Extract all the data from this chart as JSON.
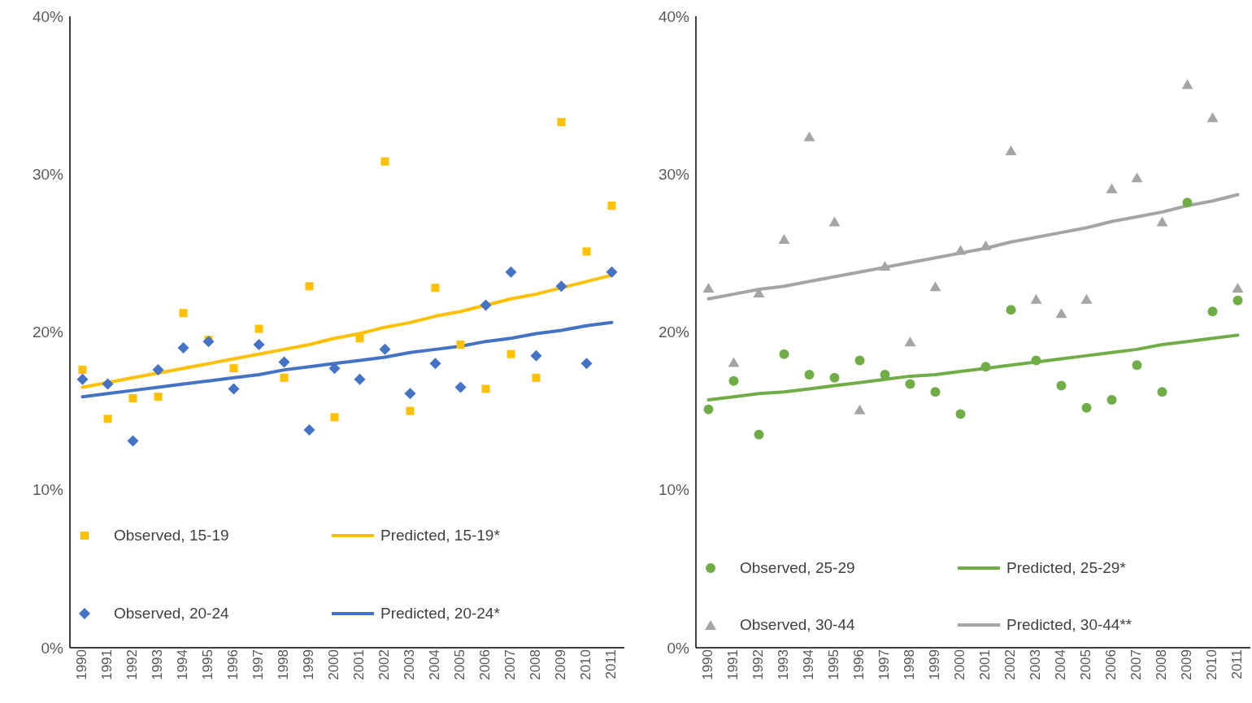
{
  "chart_data": [
    {
      "type": "scatter",
      "categories": [
        "1990",
        "1991",
        "1992",
        "1993",
        "1994",
        "1995",
        "1996",
        "1997",
        "1998",
        "1999",
        "2000",
        "2001",
        "2002",
        "2003",
        "2004",
        "2005",
        "2006",
        "2007",
        "2008",
        "2009",
        "2010",
        "2011"
      ],
      "ylim": [
        0,
        40
      ],
      "yticks": [
        {
          "value": 0,
          "label": "0%"
        },
        {
          "value": 10,
          "label": "10%"
        },
        {
          "value": 20,
          "label": "20%"
        },
        {
          "value": 30,
          "label": "30%"
        },
        {
          "value": 40,
          "label": "40%"
        }
      ],
      "legend": "bottom",
      "series": [
        {
          "name": "Observed, 15-19",
          "marker": "square",
          "color": "#ffc000",
          "values": [
            17.6,
            14.5,
            15.8,
            15.9,
            21.2,
            19.5,
            17.7,
            20.2,
            17.1,
            22.9,
            14.6,
            19.6,
            30.8,
            15.0,
            22.8,
            19.2,
            16.4,
            18.6,
            17.1,
            33.3,
            25.1,
            28.0
          ]
        },
        {
          "name": "Predicted, 15-19*",
          "type": "line",
          "color": "#ffc000",
          "values": [
            16.5,
            16.8,
            17.1,
            17.4,
            17.7,
            18.0,
            18.3,
            18.6,
            18.9,
            19.2,
            19.6,
            19.9,
            20.3,
            20.6,
            21.0,
            21.3,
            21.7,
            22.1,
            22.4,
            22.8,
            23.2,
            23.6
          ]
        },
        {
          "name": "Observed, 20-24",
          "marker": "diamond",
          "color": "#4472c4",
          "values": [
            17.0,
            16.7,
            13.1,
            17.6,
            19.0,
            19.4,
            16.4,
            19.2,
            18.1,
            13.8,
            17.7,
            17.0,
            18.9,
            16.1,
            18.0,
            16.5,
            21.7,
            23.8,
            18.5,
            22.9,
            18.0,
            23.8
          ]
        },
        {
          "name": "Predicted, 20-24*",
          "type": "line",
          "color": "#4472c4",
          "values": [
            15.9,
            16.1,
            16.3,
            16.5,
            16.7,
            16.9,
            17.1,
            17.3,
            17.6,
            17.8,
            18.0,
            18.2,
            18.4,
            18.7,
            18.9,
            19.1,
            19.4,
            19.6,
            19.9,
            20.1,
            20.4,
            20.6
          ]
        }
      ]
    },
    {
      "type": "scatter",
      "categories": [
        "1990",
        "1991",
        "1992",
        "1993",
        "1994",
        "1995",
        "1996",
        "1997",
        "1998",
        "1999",
        "2000",
        "2001",
        "2002",
        "2003",
        "2004",
        "2005",
        "2006",
        "2007",
        "2008",
        "2009",
        "2010",
        "2011"
      ],
      "ylim": [
        0,
        40
      ],
      "yticks": [
        {
          "value": 0,
          "label": "0%"
        },
        {
          "value": 10,
          "label": "10%"
        },
        {
          "value": 20,
          "label": "20%"
        },
        {
          "value": 30,
          "label": "30%"
        },
        {
          "value": 40,
          "label": "40%"
        }
      ],
      "legend": "bottom",
      "series": [
        {
          "name": "Observed, 25-29",
          "marker": "circle",
          "color": "#70ad47",
          "values": [
            15.1,
            16.9,
            13.5,
            18.6,
            17.3,
            17.1,
            18.2,
            17.3,
            16.7,
            16.2,
            14.8,
            17.8,
            21.4,
            18.2,
            16.6,
            15.2,
            15.7,
            17.9,
            16.2,
            28.2,
            21.3,
            22.0
          ]
        },
        {
          "name": "Predicted, 25-29*",
          "type": "line",
          "color": "#70ad47",
          "values": [
            15.7,
            15.9,
            16.1,
            16.2,
            16.4,
            16.6,
            16.8,
            17.0,
            17.2,
            17.3,
            17.5,
            17.7,
            17.9,
            18.1,
            18.3,
            18.5,
            18.7,
            18.9,
            19.2,
            19.4,
            19.6,
            19.8
          ]
        },
        {
          "name": "Observed, 30-44",
          "marker": "triangle",
          "color": "#a5a5a5",
          "values": [
            22.8,
            18.1,
            22.5,
            25.9,
            32.4,
            27.0,
            15.1,
            24.2,
            19.4,
            22.9,
            25.2,
            25.5,
            31.5,
            22.1,
            21.2,
            22.1,
            29.1,
            29.8,
            27.0,
            35.7,
            33.6,
            22.8
          ]
        },
        {
          "name": "Predicted, 30-44**",
          "type": "line",
          "color": "#a5a5a5",
          "values": [
            22.1,
            22.4,
            22.7,
            22.9,
            23.2,
            23.5,
            23.8,
            24.1,
            24.4,
            24.7,
            25.0,
            25.3,
            25.7,
            26.0,
            26.3,
            26.6,
            27.0,
            27.3,
            27.6,
            28.0,
            28.3,
            28.7
          ]
        }
      ]
    }
  ]
}
